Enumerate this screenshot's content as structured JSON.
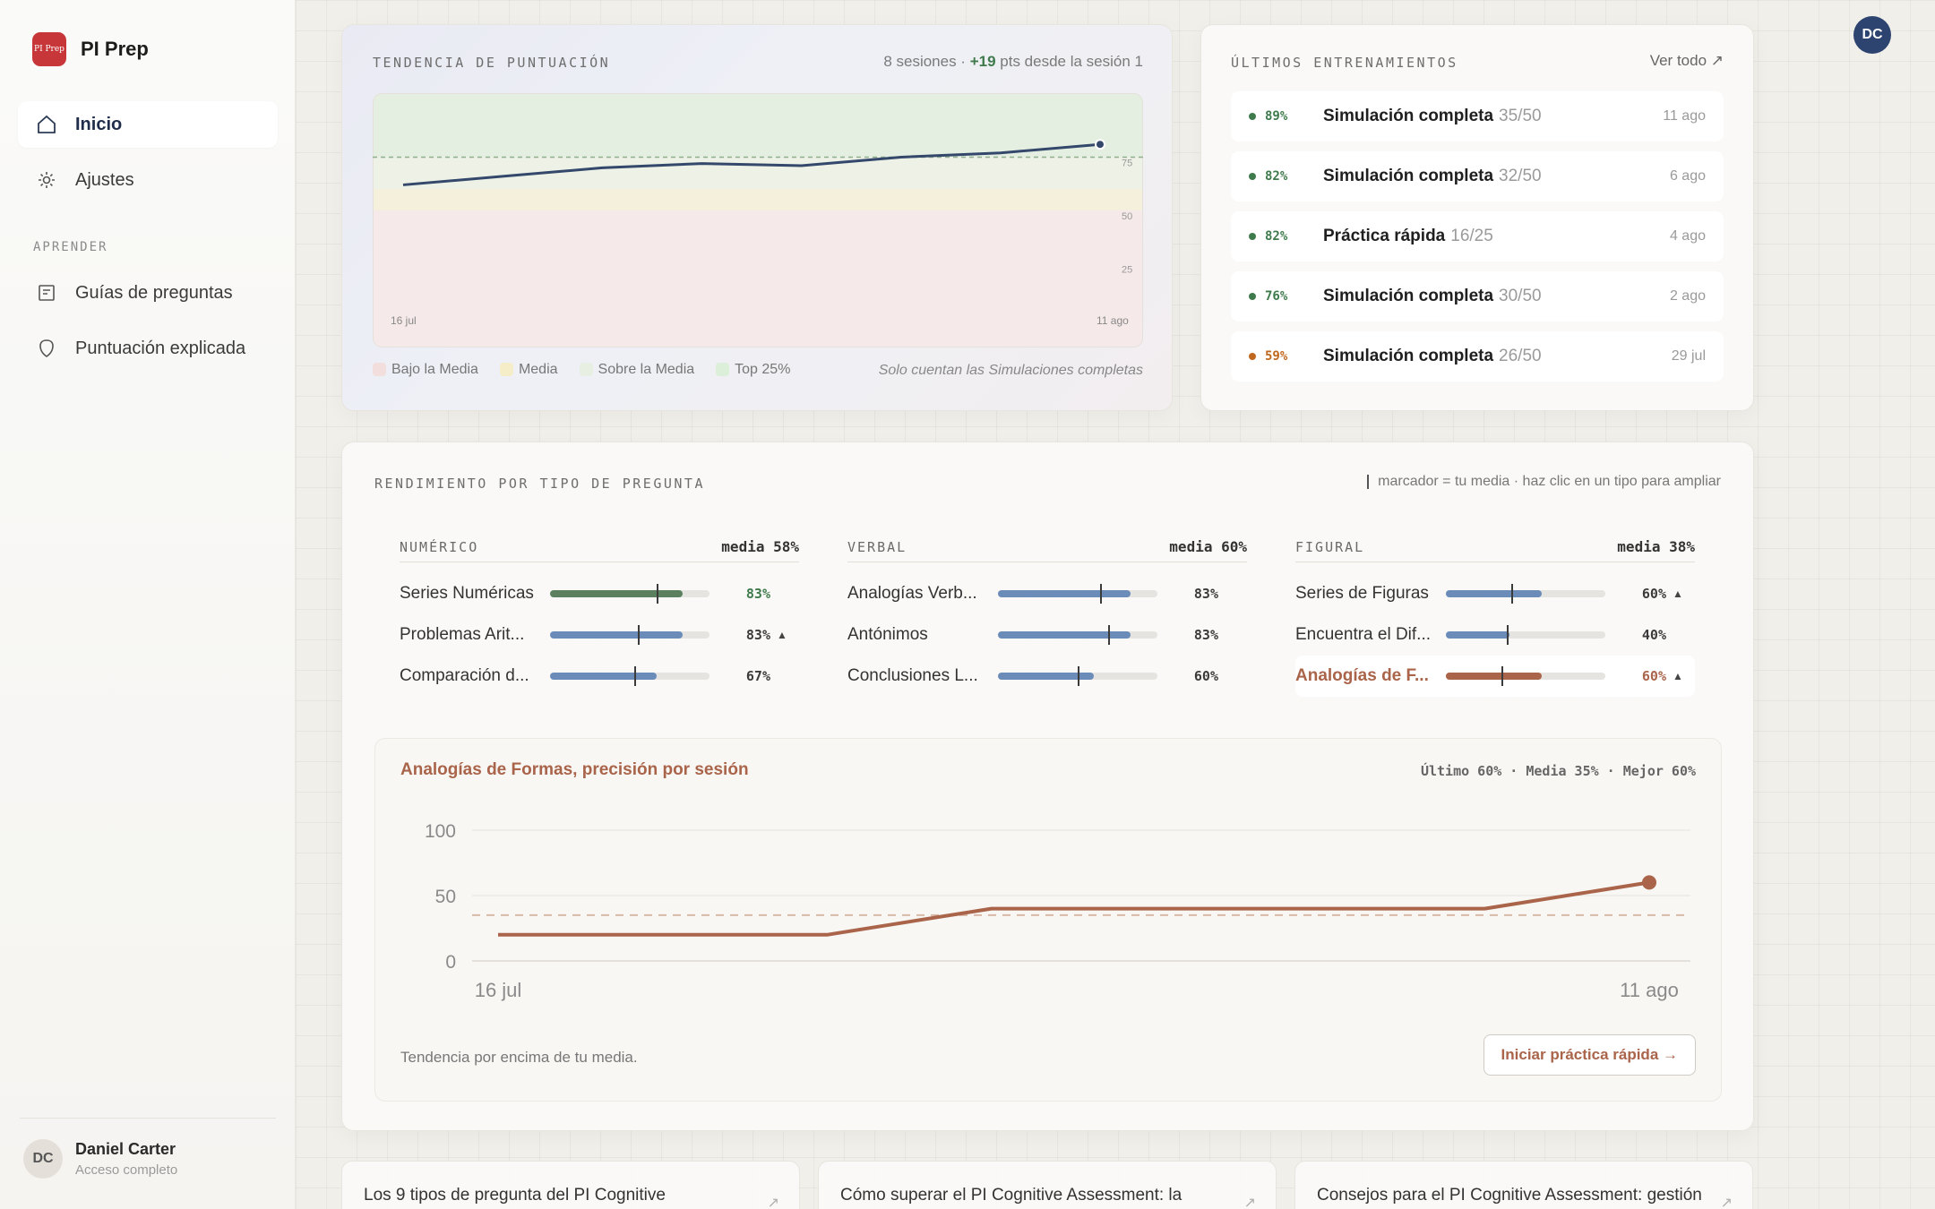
{
  "app": {
    "logo_text": "PI Prep",
    "name": "PI Prep"
  },
  "sidebar": {
    "items": [
      {
        "label": "Inicio",
        "icon": "home-icon"
      },
      {
        "label": "Ajustes",
        "icon": "gear-icon"
      }
    ],
    "section_label": "APRENDER",
    "learn_items": [
      {
        "label": "Guías de preguntas",
        "icon": "document-icon"
      },
      {
        "label": "Puntuación explicada",
        "icon": "shield-icon"
      }
    ],
    "user": {
      "initials": "DC",
      "name": "Daniel Carter",
      "plan": "Acceso completo"
    }
  },
  "header": {
    "avatar_initials": "DC"
  },
  "trend": {
    "title": "TENDENCIA DE PUNTUACIÓN",
    "meta_prefix": "8 sesiones · ",
    "meta_delta": "+19",
    "meta_suffix": " pts desde la sesión 1",
    "x_start": "16 jul",
    "x_end": "11 ago",
    "ticks": [
      "75",
      "50",
      "25"
    ],
    "legend": [
      {
        "label": "Bajo la Media",
        "color": "#f3dede"
      },
      {
        "label": "Media",
        "color": "#f5edc8"
      },
      {
        "label": "Sobre la Media",
        "color": "#e6efe2"
      },
      {
        "label": "Top 25%",
        "color": "#dcefd8"
      }
    ],
    "note": "Solo cuentan las Simulaciones completas"
  },
  "recent": {
    "title": "ÚLTIMOS ENTRENAMIENTOS",
    "view_all": "Ver todo ↗",
    "items": [
      {
        "pct": "89%",
        "name": "Simulación completa",
        "score": "35/50",
        "date": "11 ago",
        "color": "#3f7a4c"
      },
      {
        "pct": "82%",
        "name": "Simulación completa",
        "score": "32/50",
        "date": "6 ago",
        "color": "#3f7a4c"
      },
      {
        "pct": "82%",
        "name": "Práctica rápida",
        "score": "16/25",
        "date": "4 ago",
        "color": "#3f7a4c"
      },
      {
        "pct": "76%",
        "name": "Simulación completa",
        "score": "30/50",
        "date": "2 ago",
        "color": "#3f7a4c"
      },
      {
        "pct": "59%",
        "name": "Simulación completa",
        "score": "26/50",
        "date": "29 jul",
        "color": "#c0671e"
      }
    ]
  },
  "performance": {
    "title": "RENDIMIENTO POR TIPO DE PREGUNTA",
    "hint": "marcador = tu media · haz clic en un tipo para ampliar",
    "columns": [
      {
        "name": "NUMÉRICO",
        "avg": "media 58%",
        "rows": [
          {
            "label": "Series Numéricas",
            "pct": "83%",
            "trend": "",
            "fill": 0.83,
            "avg": 0.67,
            "color": "#5b8060",
            "pct_color": "#3f7a4c"
          },
          {
            "label": "Problemas Arit...",
            "pct": "83%",
            "trend": "▲",
            "fill": 0.83,
            "avg": 0.55,
            "color": "#6b8cb8",
            "pct_color": "#3b3b3b"
          },
          {
            "label": "Comparación d...",
            "pct": "67%",
            "trend": "",
            "fill": 0.67,
            "avg": 0.53,
            "color": "#6b8cb8",
            "pct_color": "#3b3b3b"
          }
        ]
      },
      {
        "name": "VERBAL",
        "avg": "media 60%",
        "rows": [
          {
            "label": "Analogías Verb...",
            "pct": "83%",
            "trend": "",
            "fill": 0.83,
            "avg": 0.64,
            "color": "#6b8cb8",
            "pct_color": "#3b3b3b"
          },
          {
            "label": "Antónimos",
            "pct": "83%",
            "trend": "",
            "fill": 0.83,
            "avg": 0.69,
            "color": "#6b8cb8",
            "pct_color": "#3b3b3b"
          },
          {
            "label": "Conclusiones L...",
            "pct": "60%",
            "trend": "",
            "fill": 0.6,
            "avg": 0.5,
            "color": "#6b8cb8",
            "pct_color": "#3b3b3b"
          }
        ]
      },
      {
        "name": "FIGURAL",
        "avg": "media 38%",
        "rows": [
          {
            "label": "Series de Figuras",
            "pct": "60%",
            "trend": "▲",
            "fill": 0.6,
            "avg": 0.41,
            "color": "#6b8cb8",
            "pct_color": "#3b3b3b"
          },
          {
            "label": "Encuentra el Dif...",
            "pct": "40%",
            "trend": "",
            "fill": 0.4,
            "avg": 0.38,
            "color": "#6b8cb8",
            "pct_color": "#3b3b3b"
          },
          {
            "label": "Analogías de F...",
            "pct": "60%",
            "trend": "▲",
            "fill": 0.6,
            "avg": 0.35,
            "color": "#a9644a",
            "pct_color": "#a9644a",
            "selected": true
          }
        ]
      }
    ]
  },
  "detail": {
    "title": "Analogías de Formas, precisión por sesión",
    "stats": "Último 60% · Media 35% · Mejor 60%",
    "footer": "Tendencia por encima de tu media.",
    "button": "Iniciar práctica rápida →"
  },
  "chart_data": [
    {
      "type": "line",
      "title": "TENDENCIA DE PUNTUACIÓN",
      "x": [
        "16 jul",
        "",
        "",
        "",
        "",
        "",
        "",
        "11 ago"
      ],
      "series": [
        {
          "values": [
            62,
            66,
            70,
            72,
            71,
            75,
            77,
            81
          ]
        }
      ],
      "ylim": [
        0,
        100
      ],
      "reference_line": 75,
      "bands": [
        {
          "label": "Bajo la Media",
          "from": 0,
          "to": 50
        },
        {
          "label": "Media",
          "from": 50,
          "to": 60
        },
        {
          "label": "Sobre la Media",
          "from": 60,
          "to": 75
        },
        {
          "label": "Top 25%",
          "from": 75,
          "to": 100
        }
      ]
    },
    {
      "type": "line",
      "title": "Analogías de Formas, precisión por sesión",
      "x": [
        "16 jul",
        "",
        "",
        "",
        "",
        "",
        "",
        "11 ago"
      ],
      "series": [
        {
          "values": [
            20,
            20,
            20,
            40,
            40,
            40,
            40,
            60
          ]
        }
      ],
      "ylim": [
        0,
        100
      ],
      "yticks": [
        100,
        50,
        0
      ],
      "reference_line": 35
    }
  ]
}
